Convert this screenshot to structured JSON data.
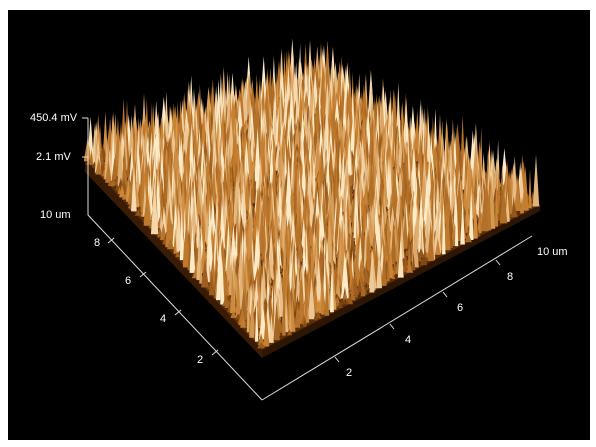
{
  "z_axis": {
    "top_label": "450.4 mV",
    "mid_label": "2.1 mV"
  },
  "y_axis": {
    "end_label": "10 um",
    "ticks": [
      "8",
      "6",
      "4",
      "2"
    ]
  },
  "x_axis": {
    "ticks": [
      "2",
      "4",
      "6",
      "8"
    ],
    "end_label": "10 um"
  }
}
